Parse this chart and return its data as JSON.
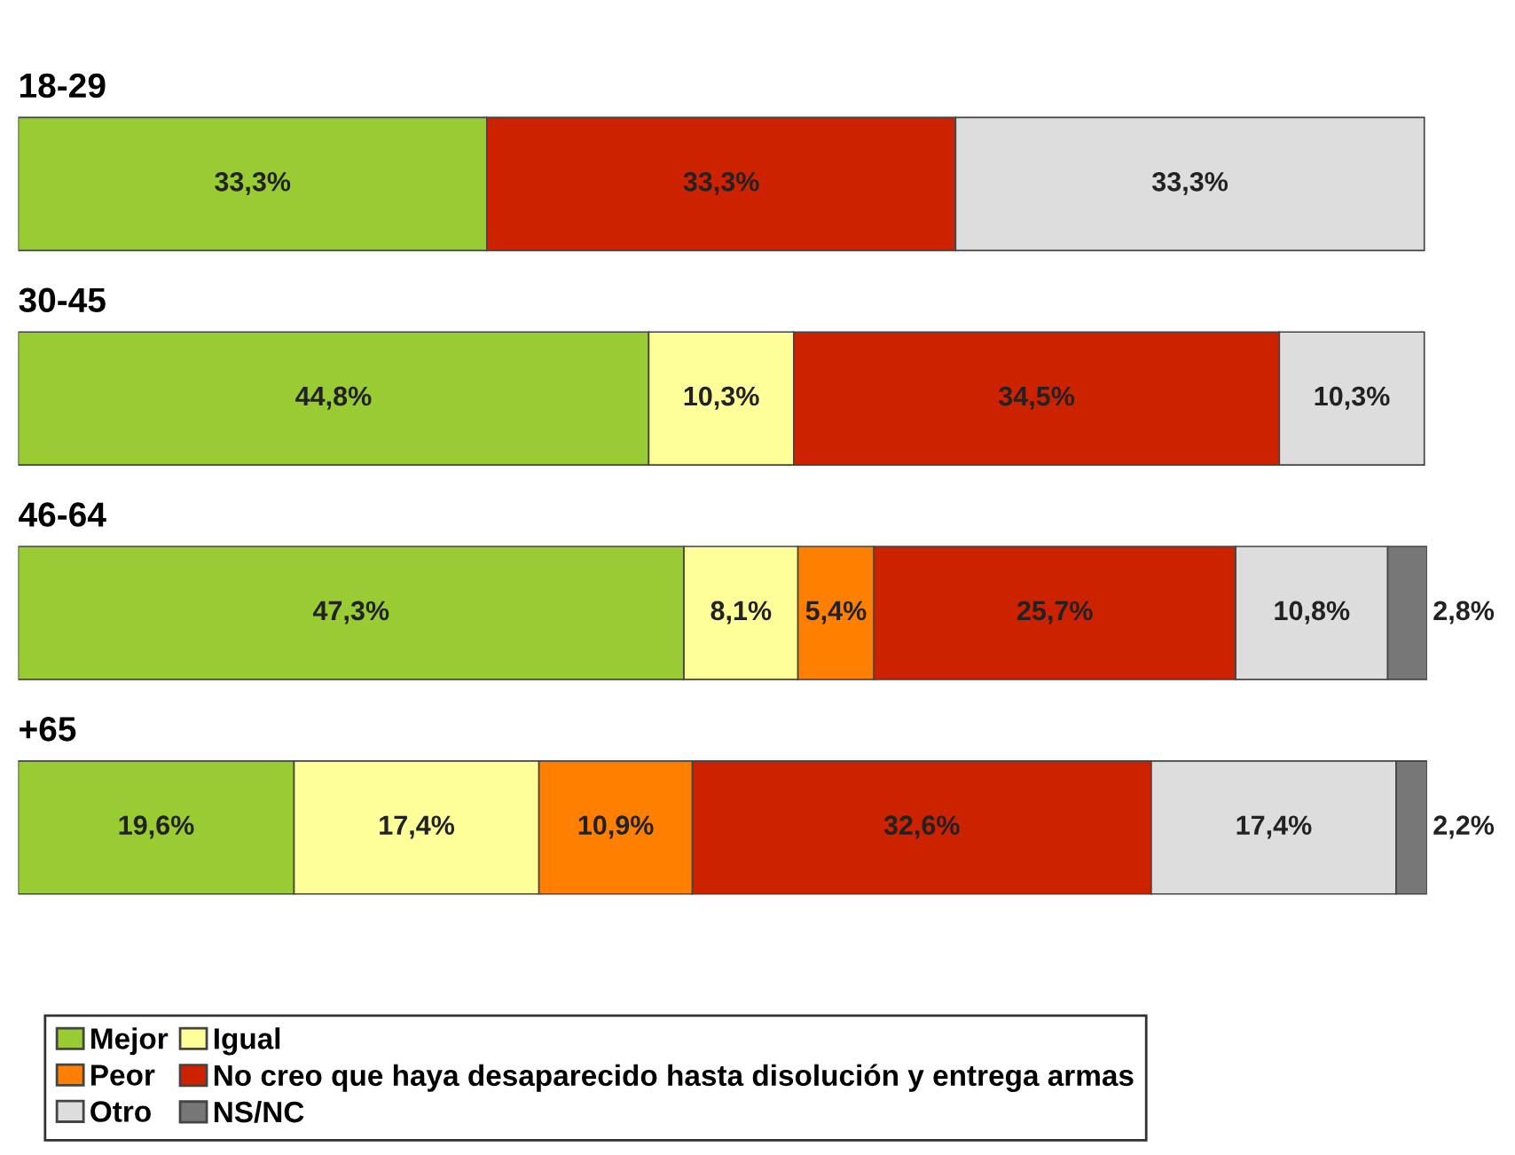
{
  "chart_data": {
    "type": "bar",
    "orientation": "horizontal",
    "stacked": true,
    "legend": "bottom",
    "categories": [
      "18-29",
      "30-45",
      "46-64",
      "+65"
    ],
    "series": [
      {
        "name": "Mejor",
        "color": "#99cc33",
        "values": [
          33.3,
          44.8,
          47.3,
          19.6
        ],
        "value_labels": [
          "33,3%",
          "44,8%",
          "47,3%",
          "19,6%"
        ]
      },
      {
        "name": "Igual",
        "color": "#ffff99",
        "values": [
          null,
          10.3,
          8.1,
          17.4
        ],
        "value_labels": [
          null,
          "10,3%",
          "8,1%",
          "17,4%"
        ]
      },
      {
        "name": "Peor",
        "color": "#ff8000",
        "values": [
          null,
          null,
          5.4,
          10.9
        ],
        "value_labels": [
          null,
          null,
          "5,4%",
          "10,9%"
        ]
      },
      {
        "name": "No creo que haya desaparecido hasta disolución y entrega armas",
        "color": "#cc2200",
        "values": [
          33.3,
          34.5,
          25.7,
          32.6
        ],
        "value_labels": [
          "33,3%",
          "34,5%",
          "25,7%",
          "32,6%"
        ]
      },
      {
        "name": "Otro",
        "color": "#dddddd",
        "values": [
          33.3,
          10.3,
          10.8,
          17.4
        ],
        "value_labels": [
          "33,3%",
          "10,3%",
          "10,8%",
          "17,4%"
        ]
      },
      {
        "name": "NS/NC",
        "color": "#777777",
        "values": [
          null,
          null,
          2.8,
          2.2
        ],
        "value_labels": [
          null,
          null,
          "2,8%",
          "2,2%"
        ]
      }
    ]
  }
}
